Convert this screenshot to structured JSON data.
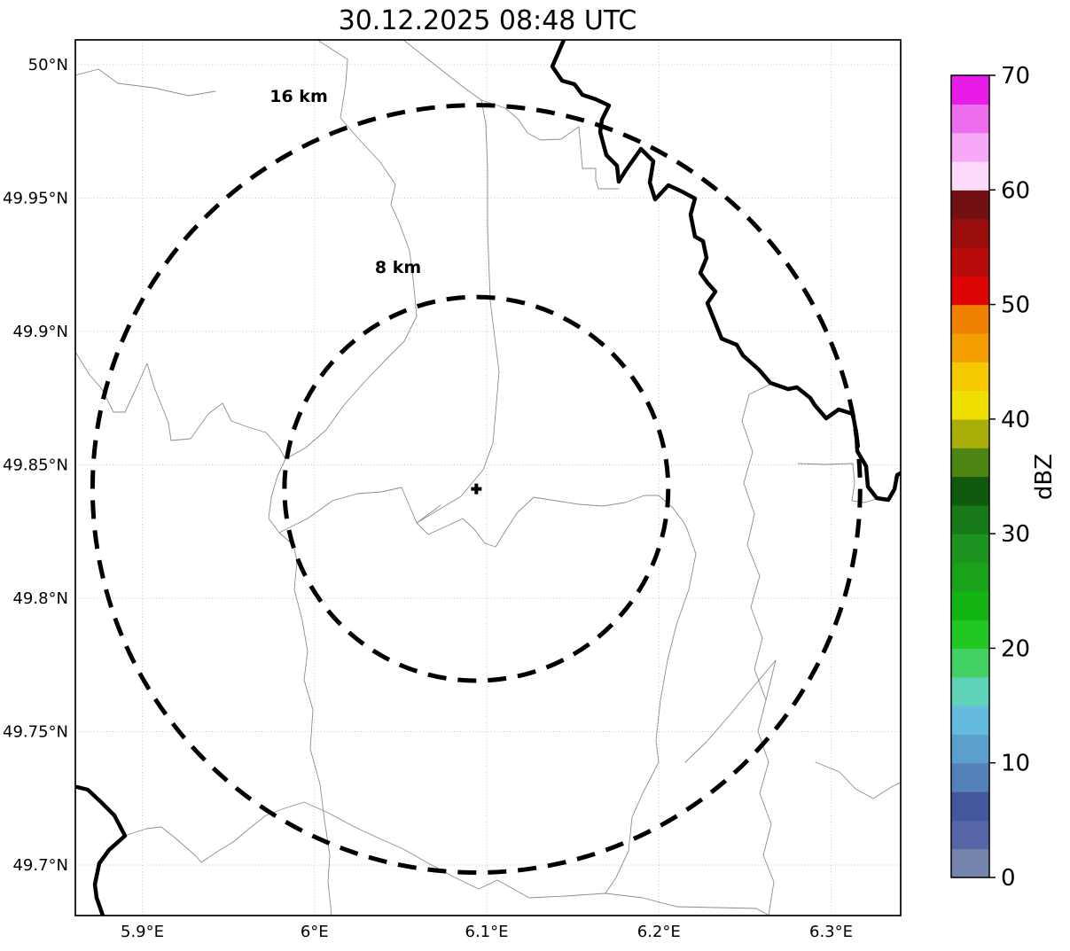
{
  "title": "30.12.2025 08:48 UTC",
  "map": {
    "x_axis_ticks": [
      {
        "label": "5.9°E",
        "lon": 5.9
      },
      {
        "label": "6°E",
        "lon": 6.0
      },
      {
        "label": "6.1°E",
        "lon": 6.1
      },
      {
        "label": "6.2°E",
        "lon": 6.2
      },
      {
        "label": "6.3°E",
        "lon": 6.3
      }
    ],
    "y_axis_ticks": [
      {
        "label": "50°N",
        "lat": 50.0
      },
      {
        "label": "49.95°N",
        "lat": 49.95
      },
      {
        "label": "49.9°N",
        "lat": 49.9
      },
      {
        "label": "49.85°N",
        "lat": 49.85
      },
      {
        "label": "49.8°N",
        "lat": 49.8
      },
      {
        "label": "49.75°N",
        "lat": 49.75
      },
      {
        "label": "49.7°N",
        "lat": 49.7
      }
    ],
    "extent": {
      "lon_min": 5.861,
      "lon_max": 6.341,
      "lat_min": 49.679,
      "lat_max": 50.009
    },
    "radar_center": {
      "lon": 6.094,
      "lat": 49.841
    },
    "range_rings": [
      {
        "label": "16 km",
        "radius_km": 16
      },
      {
        "label": "8 km",
        "radius_km": 8
      }
    ],
    "boundaries": {
      "national": [
        "M551,0 L545,14 L538,30 L549,46 L563,50 L572,62 L587,67 L602,74 L594,90 L592,104 L599,130 L611,142 L613,160 L621,147 L638,123 L652,137 L648,161 L654,180 L669,164 L684,171 L699,179 L694,197 L699,222 L708,227 L712,246 L705,263 L713,274 L722,284 L713,297 L721,317 L729,337 L746,344 L753,356 L771,372 L784,387 L804,394 L814,392 L829,404 L834,412 L847,427 L861,417 L877,422 L881,444 L882,464 L892,481 L894,504 L904,517 L917,519 L924,507 L927,491 L936,486",
        "M2,843 L14,846 L29,860 L44,875 L56,898 L38,914 L27,929 L22,953 L24,968 L31,988"
      ],
      "admin": [
        "M0,40 L26,33 L48,49 L88,54 L128,63 L158,58",
        "M273,0 L307,22 L305,50 L299,88 L318,110 L344,138 L361,163 L356,186 L366,208 L377,238 L381,270 L385,312 L371,340 L351,360 L327,385 L303,412 L283,440 L260,460 L237,473 L228,492 L221,516 L218,540 L230,556 L246,570 L250,588 L247,620 L256,655 L262,690 L258,722 L268,756 L265,800 L276,840 L281,880 L287,920 L285,950 L289,988",
        "M0,352 L16,378 L30,394 L43,420 L56,420 L70,390 L81,365 L89,392 L105,432 L108,452 L130,450 L150,422 L166,410 L176,430 L192,436 L215,443 L230,460 L237,473",
        "M370,0 L408,30 L436,52 L458,68 L463,95 L465,145 L465,212 L468,295 L478,375 L471,455 L460,485 L435,515 L410,530 L385,545",
        "M458,68 L485,77 L500,90 L510,105 L525,113 L548,112 L568,98 L572,145 L587,145 L587,158 L590,168 L613,168",
        "M230,556 L262,540 L290,520 L318,512 L345,510 L368,505 L385,545 L412,525 L385,545 L398,558 L420,548 L437,540 L450,552 L462,568 L474,572 L484,556 L498,534 L517,516 L542,520 L568,524 L595,526 L620,522 L642,514 L658,514 L674,528 L686,544 L690,552",
        "M690,552 L700,580 L692,620 L678,660 L668,700 L660,745 L655,790 L658,815 L640,850 L628,877 L624,915 L610,945 L598,963",
        "M455,958 L476,948 L512,968 L553,966 L598,963 L640,968 L678,978 L768,980 L783,988",
        "M56,898 L80,890 L97,888 L112,900 L127,913 L136,921 L142,928 L160,916 L178,905 L196,890 L215,875 L233,868 L258,860 L285,872 L315,888 L345,902 L370,913 L400,930 L428,945 L455,958",
        "M815,478 L845,479 L877,478 L879,500 L876,520 L891,522 L903,518",
        "M785,388 L760,400 L752,430 L764,465 L754,500 L766,535 L758,570 L772,605 L762,640 L775,675 L766,710 L779,745 L770,780 L782,815 L772,850 L785,885 L776,920 L788,950 L782,988",
        "M688,815 L712,792 L738,762 L768,726 L790,700 L779,745",
        "M835,815 L862,826 L880,845 L900,856 L922,842 L931,838"
      ]
    }
  },
  "colorbar": {
    "label": "dBZ",
    "vmin": 0,
    "vmax": 70,
    "band_step": 2.5,
    "tick_values": [
      0,
      10,
      20,
      30,
      40,
      50,
      60,
      70
    ],
    "band_colors_bottom_to_top": [
      "#7585ad",
      "#5565a5",
      "#44569e",
      "#5581bb",
      "#5b9fcc",
      "#64bbdd",
      "#5ed3b8",
      "#44d164",
      "#21c821",
      "#12b412",
      "#1aa21a",
      "#1d9421",
      "#177917",
      "#0e590e",
      "#4c8512",
      "#a9ae08",
      "#f0e000",
      "#f5c800",
      "#f49e00",
      "#f08000",
      "#dd0404",
      "#b80c0c",
      "#990d0d",
      "#731012",
      "#fcdafc",
      "#f7a8f7",
      "#ee6dee",
      "#e81ce8"
    ]
  }
}
